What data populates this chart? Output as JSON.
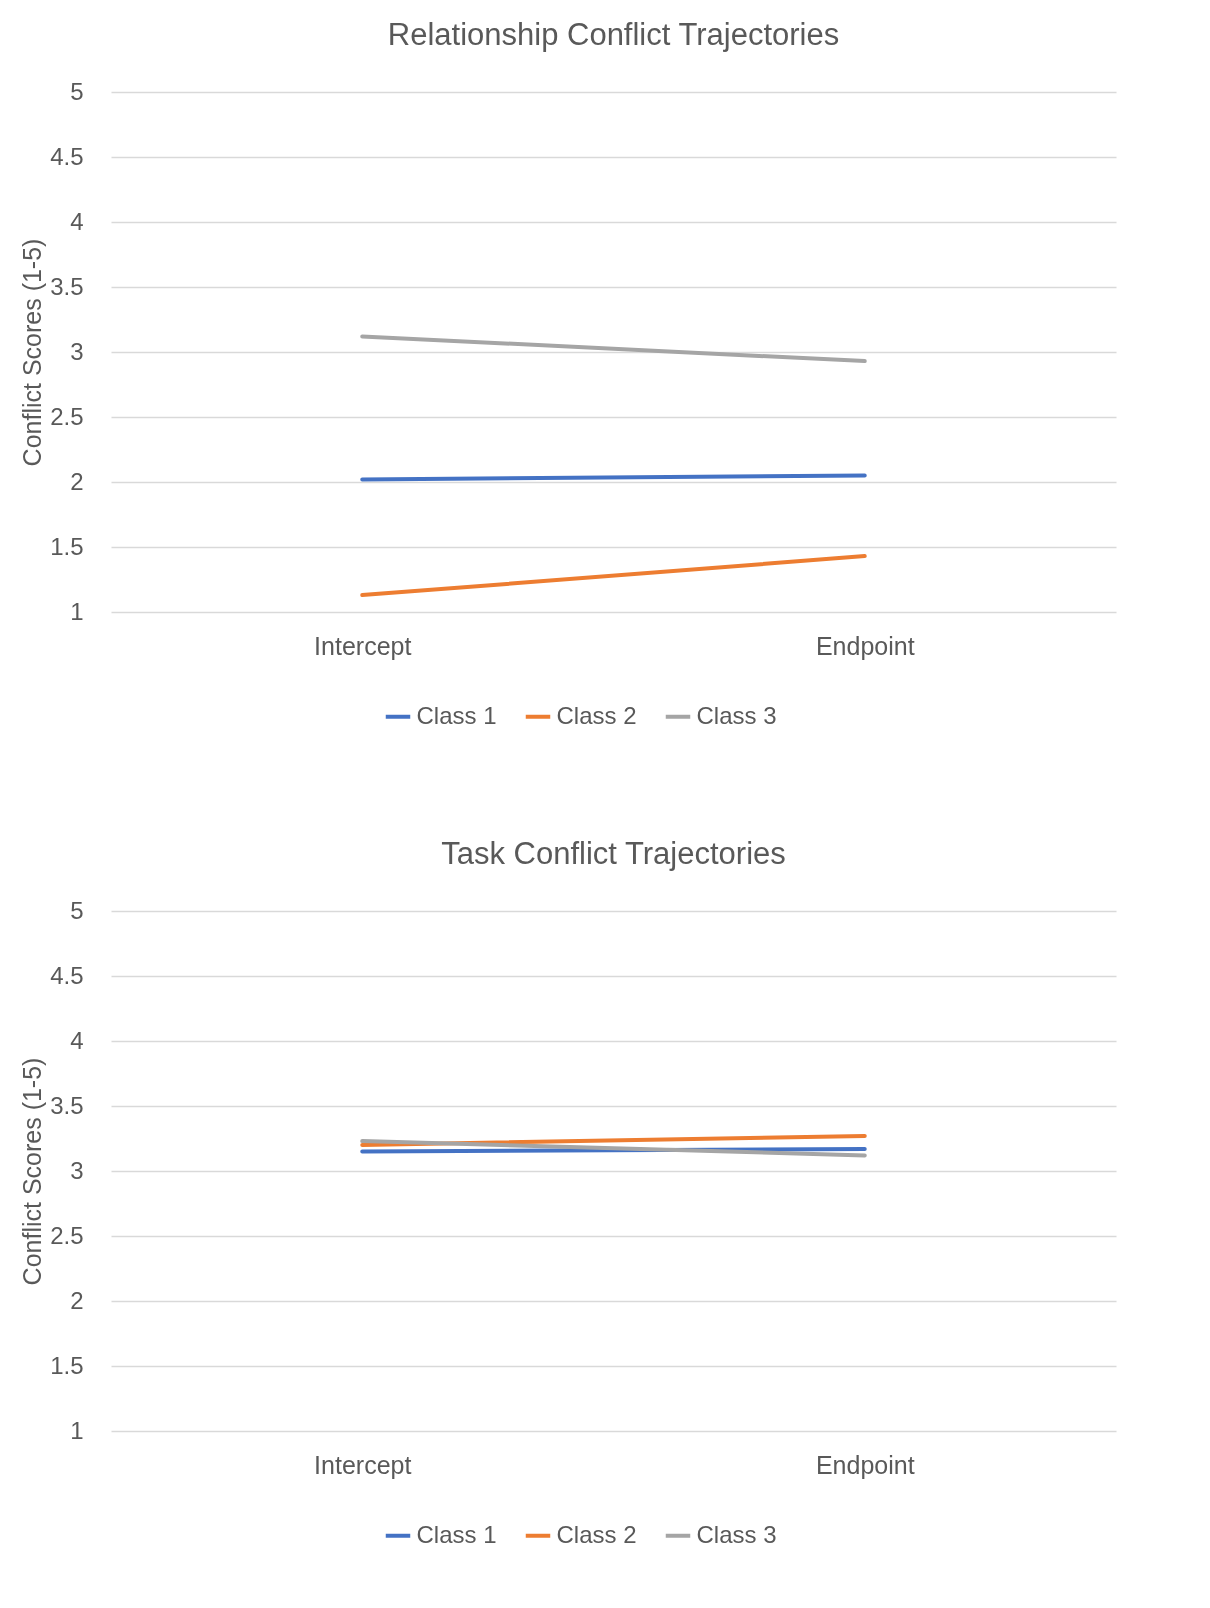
{
  "chart_data": [
    {
      "type": "line",
      "title": "Relationship Conflict Trajectories",
      "ylabel": "Conflict Scores (1-5)",
      "categories": [
        "Intercept",
        "Endpoint"
      ],
      "series": [
        {
          "name": "Class 1",
          "color": "#4472c4",
          "values": [
            2.02,
            2.05
          ]
        },
        {
          "name": "Class 2",
          "color": "#ed7d31",
          "values": [
            1.13,
            1.43
          ]
        },
        {
          "name": "Class 3",
          "color": "#a5a5a5",
          "values": [
            3.12,
            2.93
          ]
        }
      ],
      "ylim": [
        1,
        5
      ],
      "yticks": [
        1,
        1.5,
        2,
        2.5,
        3,
        3.5,
        4,
        4.5,
        5
      ],
      "grid": "y",
      "legend": "bottom"
    },
    {
      "type": "line",
      "title": "Task Conflict Trajectories",
      "ylabel": "Conflict Scores (1-5)",
      "categories": [
        "Intercept",
        "Endpoint"
      ],
      "series": [
        {
          "name": "Class 1",
          "color": "#4472c4",
          "values": [
            3.15,
            3.17
          ]
        },
        {
          "name": "Class 2",
          "color": "#ed7d31",
          "values": [
            3.2,
            3.27
          ]
        },
        {
          "name": "Class 3",
          "color": "#a5a5a5",
          "values": [
            3.23,
            3.12
          ]
        }
      ],
      "ylim": [
        1,
        5
      ],
      "yticks": [
        1,
        1.5,
        2,
        2.5,
        3,
        3.5,
        4,
        4.5,
        5
      ],
      "grid": "y",
      "legend": "bottom"
    }
  ]
}
